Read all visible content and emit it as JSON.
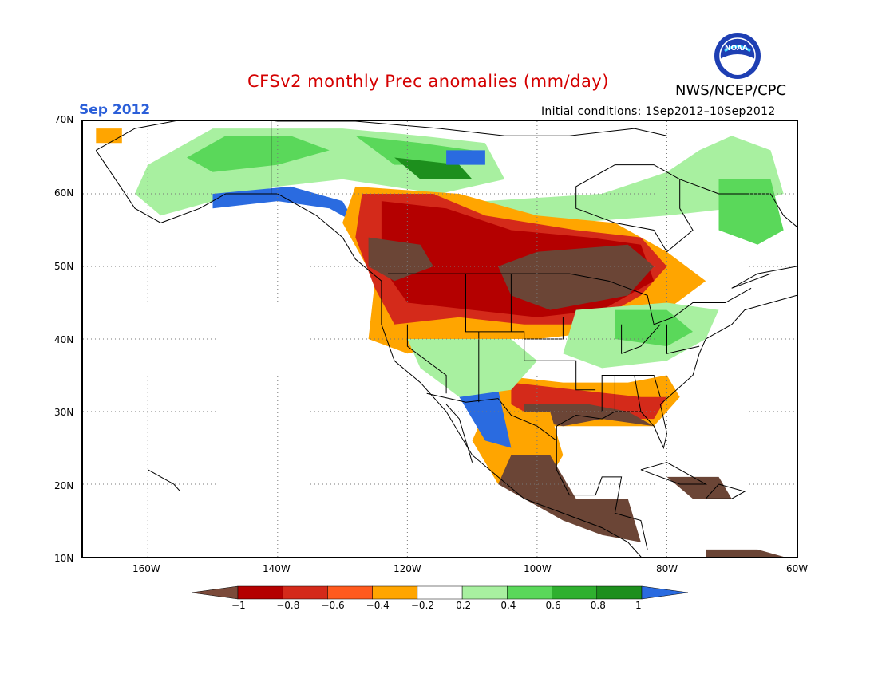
{
  "header": {
    "title": "CFSv2 monthly Prec anomalies (mm/day)",
    "agency": "NWS/NCEP/CPC",
    "logo_text": "NOAA",
    "month": "Sep 2012",
    "initial_conditions": "Initial conditions: 1Sep2012–10Sep2012"
  },
  "map": {
    "lon_range": [
      -170,
      -60
    ],
    "lat_range": [
      10,
      70
    ],
    "lon_ticks": [
      "160W",
      "140W",
      "120W",
      "100W",
      "80W",
      "60W"
    ],
    "lat_ticks": [
      "10N",
      "20N",
      "30N",
      "40N",
      "50N",
      "60N",
      "70N"
    ],
    "grid": true
  },
  "colorbar": {
    "labels": [
      "−1",
      "−0.8",
      "−0.6",
      "−0.4",
      "−0.2",
      "0.2",
      "0.4",
      "0.6",
      "0.8",
      "1"
    ],
    "colors": [
      "#7b4a3a",
      "#b40000",
      "#d42a1a",
      "#ff5a1e",
      "#ffa500",
      "#ffffff",
      "#a8f0a0",
      "#5ad85a",
      "#2fb02f",
      "#1d8f1d",
      "#2a6be0"
    ]
  },
  "colors": {
    "brown": "#6b4536",
    "dark_red": "#b40000",
    "red": "#d42a1a",
    "orange_red": "#ff5a1e",
    "orange": "#ffa500",
    "light_green": "#a8f0a0",
    "green": "#5ad85a",
    "mid_green": "#2fb02f",
    "dark_green": "#1d8f1d",
    "blue": "#2a6be0"
  }
}
